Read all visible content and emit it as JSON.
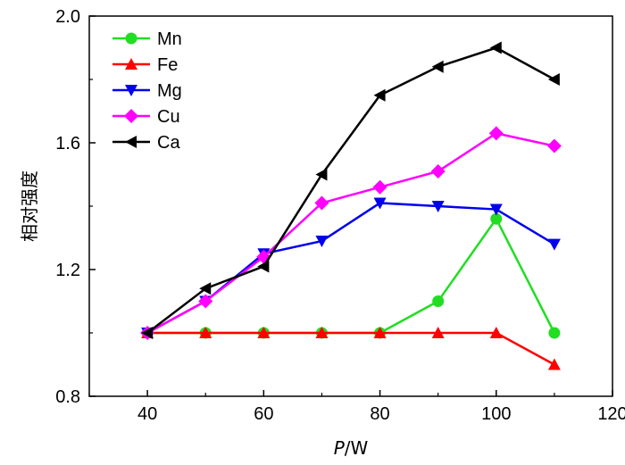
{
  "chart_data": {
    "type": "line",
    "title": "",
    "xlabel_italic": "P",
    "xlabel_rest": "/W",
    "ylabel": "相对强度",
    "xlim": [
      30,
      120
    ],
    "ylim": [
      0.8,
      2.0
    ],
    "x_ticks": [
      40,
      60,
      80,
      100,
      120
    ],
    "x_tick_labels": [
      "40",
      "60",
      "80",
      "100",
      "120"
    ],
    "y_ticks": [
      0.8,
      1.2,
      1.6,
      2.0
    ],
    "y_tick_labels": [
      "0.8",
      "1.2",
      "1.6",
      "2.0"
    ],
    "grid": false,
    "legend_position": "top-left",
    "x": [
      40,
      50,
      60,
      70,
      80,
      90,
      100,
      110
    ],
    "series": [
      {
        "name": "Mn",
        "color": "#22dd22",
        "marker": "circle",
        "values": [
          1.0,
          1.0,
          1.0,
          1.0,
          1.0,
          1.1,
          1.36,
          1.0
        ]
      },
      {
        "name": "Fe",
        "color": "#ff0000",
        "marker": "triangle-up",
        "values": [
          1.0,
          1.0,
          1.0,
          1.0,
          1.0,
          1.0,
          1.0,
          0.9
        ]
      },
      {
        "name": "Mg",
        "color": "#0000ee",
        "marker": "triangle-down",
        "values": [
          1.0,
          1.1,
          1.25,
          1.29,
          1.41,
          1.4,
          1.39,
          1.28
        ]
      },
      {
        "name": "Cu",
        "color": "#ff00ff",
        "marker": "diamond",
        "values": [
          1.0,
          1.1,
          1.24,
          1.41,
          1.46,
          1.51,
          1.63,
          1.59
        ]
      },
      {
        "name": "Ca",
        "color": "#000000",
        "marker": "triangle-left",
        "values": [
          1.0,
          1.14,
          1.21,
          1.5,
          1.75,
          1.84,
          1.9,
          1.8
        ]
      }
    ]
  }
}
